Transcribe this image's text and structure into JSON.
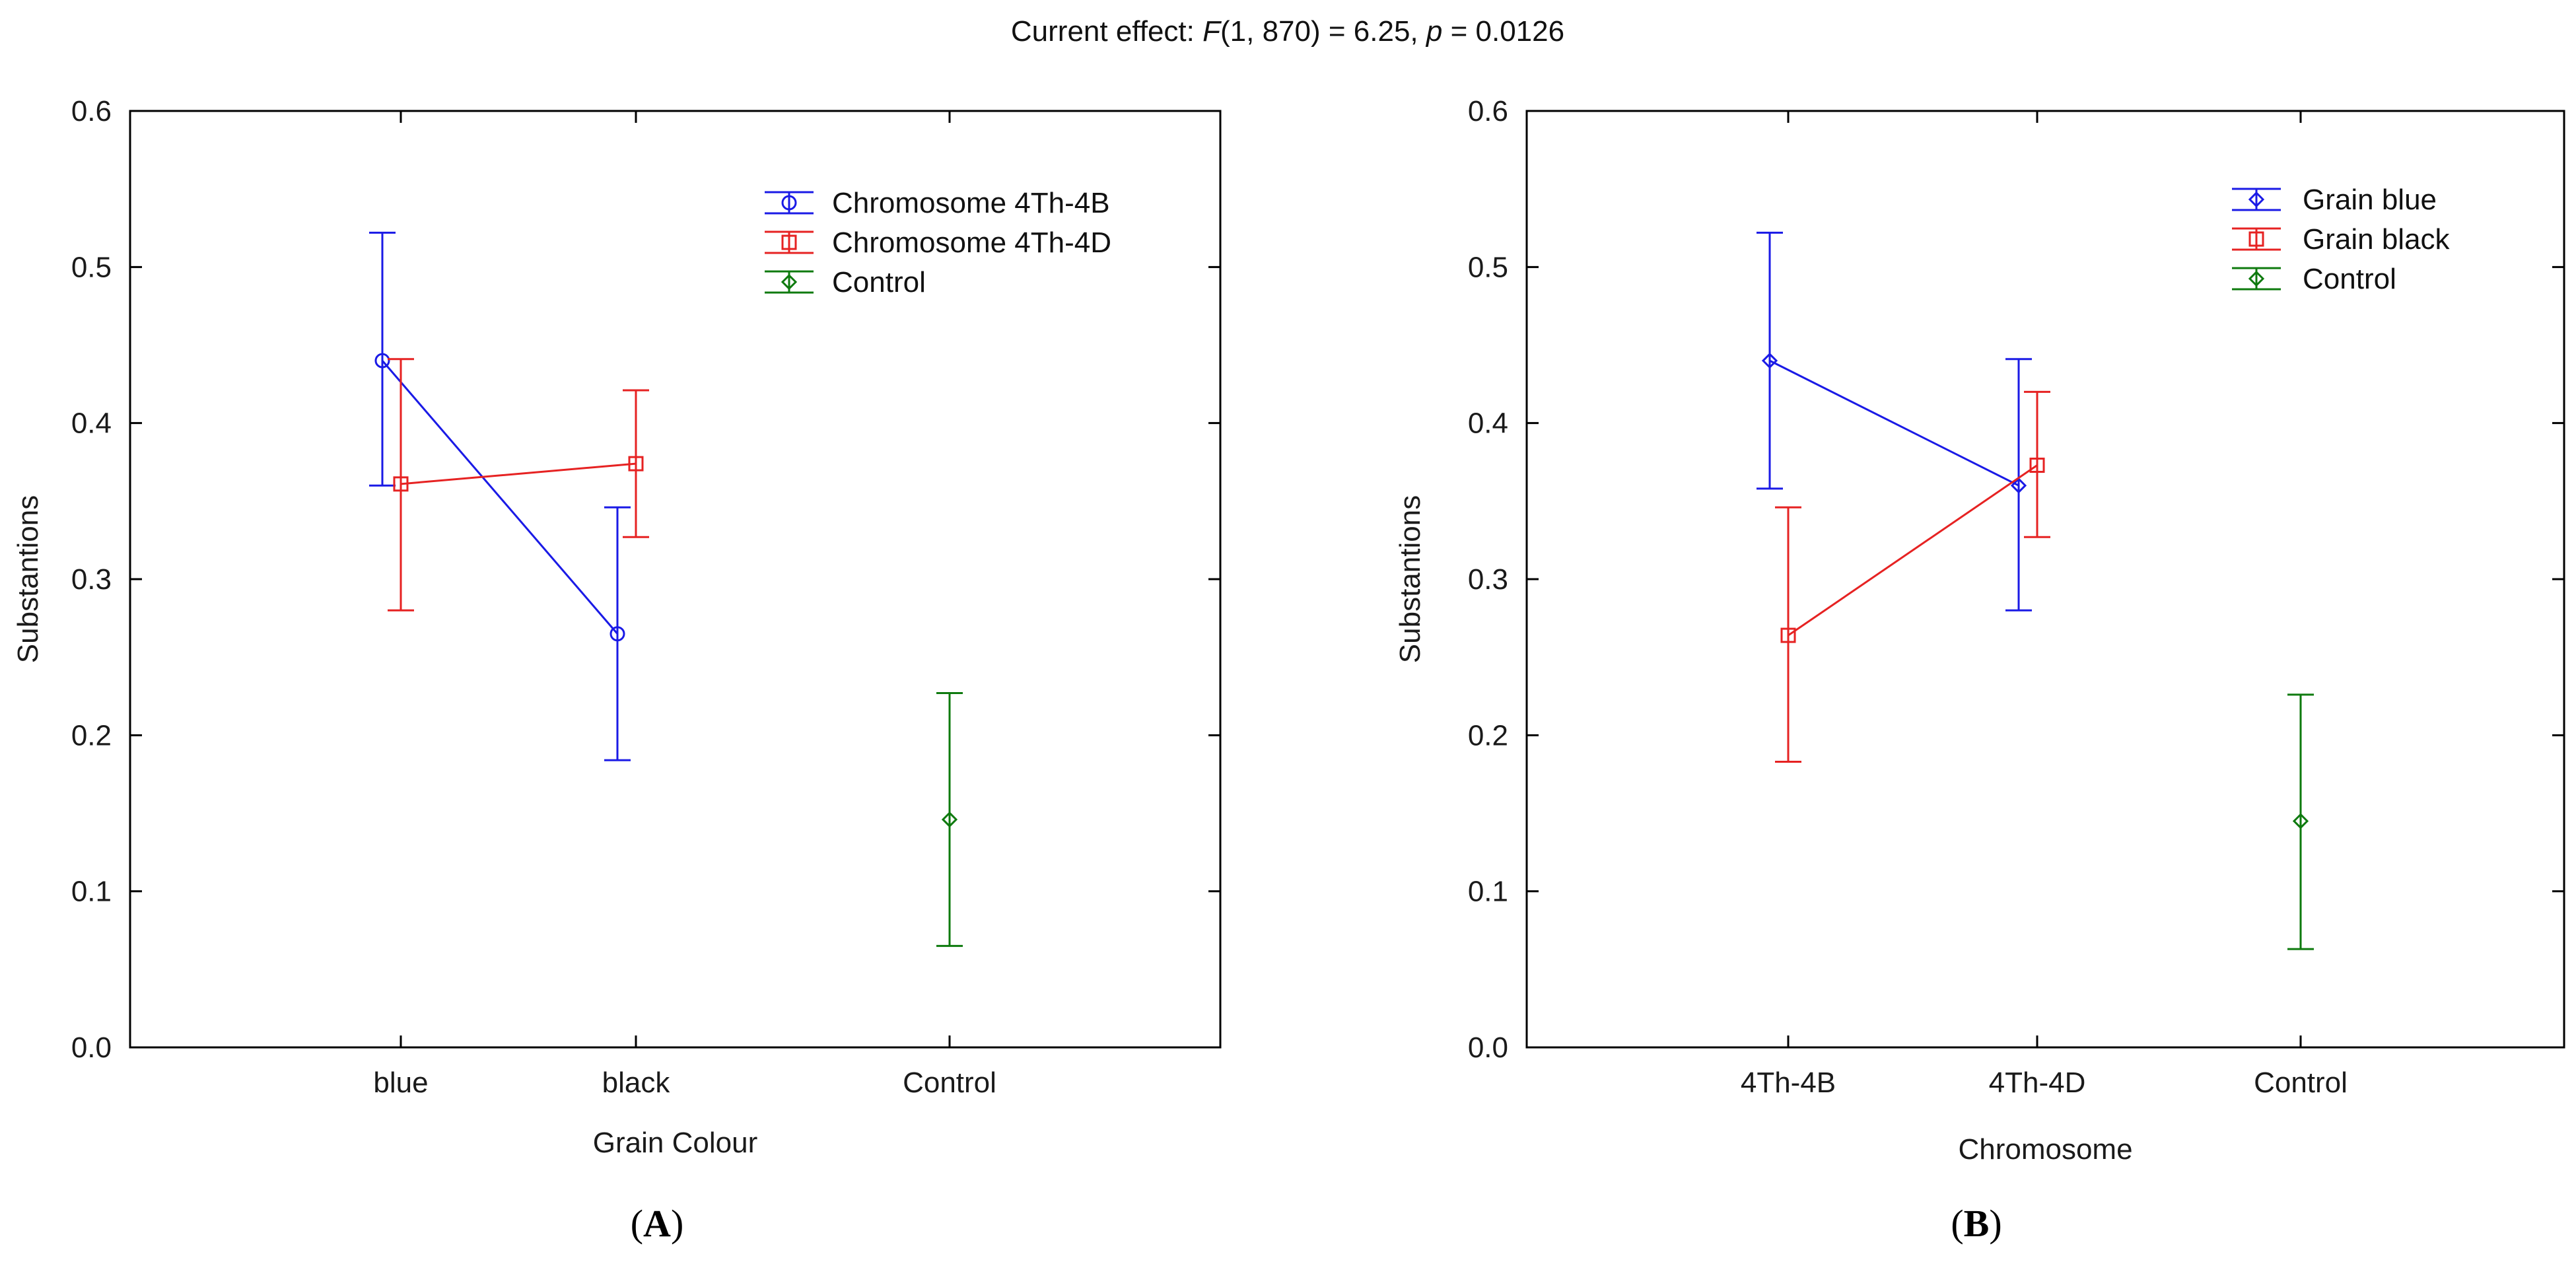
{
  "header": {
    "prefix": "Current effect: ",
    "stat": "F",
    "df": "(1, 870) = 6.25, ",
    "p_label": "p",
    "p_value": " = 0.0126"
  },
  "captions": {
    "a_letter": "A",
    "b_letter": "B"
  },
  "colors": {
    "blue": "#1a1ae6",
    "red": "#e62222",
    "green": "#0e7a0e"
  },
  "chart_data": [
    {
      "type": "line",
      "panel": "A",
      "xlabel": "Grain Colour",
      "ylabel": "Substantions",
      "ylim": [
        0,
        0.6
      ],
      "yticks": [
        "0.0",
        "0.1",
        "0.2",
        "0.3",
        "0.4",
        "0.5",
        "0.6"
      ],
      "categories": [
        "blue",
        "black",
        "Control"
      ],
      "legend_position": "top-right",
      "series": [
        {
          "name": "Chromosome  4Th-4B",
          "color": "#1a1ae6",
          "marker": "circle",
          "x": [
            0,
            1
          ],
          "values": [
            0.44,
            0.265
          ],
          "lower": [
            0.36,
            0.184
          ],
          "upper": [
            0.522,
            0.346
          ]
        },
        {
          "name": "Chromosome  4Th-4D",
          "color": "#e62222",
          "marker": "square",
          "x": [
            0,
            1
          ],
          "values": [
            0.361,
            0.374
          ],
          "lower": [
            0.28,
            0.327
          ],
          "upper": [
            0.441,
            0.421
          ]
        },
        {
          "name": "Control",
          "color": "#0e7a0e",
          "marker": "diamond",
          "x": [
            2
          ],
          "values": [
            0.146
          ],
          "lower": [
            0.065
          ],
          "upper": [
            0.227
          ]
        }
      ]
    },
    {
      "type": "line",
      "panel": "B",
      "xlabel": "Chromosome",
      "ylabel": "Substantions",
      "ylim": [
        0,
        0.6
      ],
      "yticks": [
        "0.0",
        "0.1",
        "0.2",
        "0.3",
        "0.4",
        "0.5",
        "0.6"
      ],
      "categories": [
        "4Th-4B",
        "4Th-4D",
        "Control"
      ],
      "legend_position": "top-right",
      "series": [
        {
          "name": "Grain  blue",
          "color": "#1a1ae6",
          "marker": "diamond",
          "x": [
            0,
            1
          ],
          "values": [
            0.44,
            0.36
          ],
          "lower": [
            0.358,
            0.28
          ],
          "upper": [
            0.522,
            0.441
          ]
        },
        {
          "name": "Grain  black",
          "color": "#e62222",
          "marker": "square",
          "x": [
            0,
            1
          ],
          "values": [
            0.264,
            0.373
          ],
          "lower": [
            0.183,
            0.327
          ],
          "upper": [
            0.346,
            0.42
          ]
        },
        {
          "name": "Control",
          "color": "#0e7a0e",
          "marker": "diamond",
          "x": [
            2
          ],
          "values": [
            0.145
          ],
          "lower": [
            0.063
          ],
          "upper": [
            0.226
          ]
        }
      ]
    }
  ]
}
